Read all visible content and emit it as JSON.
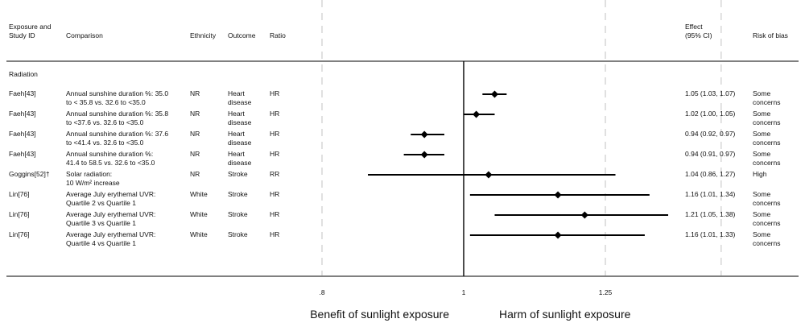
{
  "chart_data": {
    "type": "forest",
    "headers": {
      "study": "Exposure and\nStudy ID",
      "comparison": "Comparison",
      "ethnicity": "Ethnicity",
      "outcome": "Outcome",
      "ratio": "Ratio",
      "effect": "Effect\n(95% CI)",
      "bias": "Risk of bias"
    },
    "section": "Radiation",
    "rows": [
      {
        "study": "Faeh[43]",
        "comparison": "Annual sunshine duration %: 35.0\nto < 35.8 vs. 32.6 to <35.0",
        "ethnicity": "NR",
        "outcome": "Heart\ndisease",
        "ratio": "HR",
        "est": 1.05,
        "lo": 1.03,
        "hi": 1.07,
        "effect": "1.05 (1.03, 1.07)",
        "bias": "Some\nconcerns"
      },
      {
        "study": "Faeh[43]",
        "comparison": "Annual sunshine duration %: 35.8\nto <37.6 vs. 32.6 to <35.0",
        "ethnicity": "NR",
        "outcome": "Heart\ndisease",
        "ratio": "HR",
        "est": 1.02,
        "lo": 1.0,
        "hi": 1.05,
        "effect": "1.02 (1.00, 1.05)",
        "bias": "Some\nconcerns"
      },
      {
        "study": "Faeh[43]",
        "comparison": "Annual sunshine duration %: 37.6\nto <41.4 vs. 32.6 to <35.0",
        "ethnicity": "NR",
        "outcome": "Heart\ndisease",
        "ratio": "HR",
        "est": 0.94,
        "lo": 0.92,
        "hi": 0.97,
        "effect": "0.94 (0.92, 0.97)",
        "bias": "Some\nconcerns"
      },
      {
        "study": "Faeh[43]",
        "comparison": "Annual sunshine duration %:\n41.4 to 58.5 vs. 32.6 to <35.0",
        "ethnicity": "NR",
        "outcome": "Heart\ndisease",
        "ratio": "HR",
        "est": 0.94,
        "lo": 0.91,
        "hi": 0.97,
        "effect": "0.94 (0.91, 0.97)",
        "bias": "Some\nconcerns"
      },
      {
        "study": "Goggins[52]†",
        "comparison": "Solar radiation:\n10 W/m² increase",
        "ethnicity": "NR",
        "outcome": "Stroke",
        "ratio": "RR",
        "est": 1.04,
        "lo": 0.86,
        "hi": 1.27,
        "effect": "1.04 (0.86, 1.27)",
        "bias": "High"
      },
      {
        "study": "Lin[76]",
        "comparison": "Average July erythemal UVR:\nQuartile 2 vs Quartile 1",
        "ethnicity": "White",
        "outcome": "Stroke",
        "ratio": "HR",
        "est": 1.16,
        "lo": 1.01,
        "hi": 1.34,
        "effect": "1.16 (1.01, 1.34)",
        "bias": "Some\nconcerns"
      },
      {
        "study": "Lin[76]",
        "comparison": "Average July erythemal UVR:\nQuartile 3 vs Quartile 1",
        "ethnicity": "White",
        "outcome": "Stroke",
        "ratio": "HR",
        "est": 1.21,
        "lo": 1.05,
        "hi": 1.38,
        "effect": "1.21 (1.05, 1.38)",
        "bias": "Some\nconcerns"
      },
      {
        "study": "Lin[76]",
        "comparison": "Average July erythemal UVR:\nQuartile 4 vs Quartile 1",
        "ethnicity": "White",
        "outcome": "Stroke",
        "ratio": "HR",
        "est": 1.16,
        "lo": 1.01,
        "hi": 1.33,
        "effect": "1.16 (1.01, 1.33)",
        "bias": "Some\nconcerns"
      }
    ],
    "x_ticks": [
      {
        "value": 0.8,
        "label": ".8"
      },
      {
        "value": 1.0,
        "label": "1"
      },
      {
        "value": 1.25,
        "label": "1.25"
      }
    ],
    "reference_value": 1.0,
    "dashed_gridlines": [
      0.8,
      1.25,
      1.5
    ],
    "xlabel_left": "Benefit of sunlight exposure",
    "xlabel_right": "Harm of sunlight exposure"
  }
}
